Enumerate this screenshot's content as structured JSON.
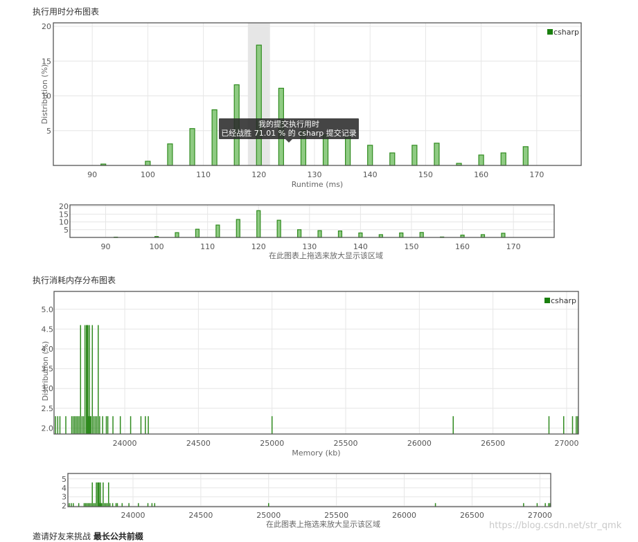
{
  "runtime_section": {
    "title": "执行用时分布图表"
  },
  "memory_section": {
    "title": "执行消耗内存分布图表"
  },
  "footer": {
    "prefix": "邀请好友来挑战 ",
    "link": "最长公共前缀"
  },
  "watermark": "https://blog.csdn.net/str_qmk",
  "colors": {
    "bar_fill": "#8fcb83",
    "bar_stroke": "#2f8a1e",
    "legend": "#1a7f0e",
    "grid": "#e6e6e6",
    "frame": "#555555",
    "highlight": "#e6e6e6"
  },
  "chart_data": [
    {
      "id": "runtime_main",
      "type": "bar",
      "xlabel": "Runtime (ms)",
      "ylabel": "Distribution (%)",
      "xlim": [
        83,
        178
      ],
      "ylim": [
        0,
        20.5
      ],
      "xticks": [
        90,
        100,
        110,
        120,
        130,
        140,
        150,
        160,
        170
      ],
      "yticks": [
        5,
        10,
        15,
        20
      ],
      "grid": true,
      "legend": {
        "position": "top-right",
        "entries": [
          "csharp"
        ]
      },
      "highlight_x": 120,
      "tooltip": {
        "line1": "我的提交执行用时",
        "line2": "已经战胜 71.01 % 的 csharp 提交记录"
      },
      "series": [
        {
          "name": "csharp",
          "x": [
            92,
            100,
            104,
            108,
            112,
            116,
            120,
            124,
            128,
            132,
            136,
            140,
            144,
            148,
            152,
            156,
            160,
            164,
            168
          ],
          "values": [
            0.2,
            0.6,
            3.1,
            5.3,
            8.0,
            11.6,
            17.3,
            11.1,
            5.0,
            4.4,
            4.2,
            2.9,
            1.8,
            2.9,
            3.2,
            0.3,
            1.5,
            1.8,
            2.7
          ]
        }
      ]
    },
    {
      "id": "runtime_navigator",
      "type": "bar",
      "xlabel": "在此图表上拖选来放大显示该区域",
      "xlim": [
        83,
        178
      ],
      "ylim": [
        0,
        21
      ],
      "xticks": [
        90,
        100,
        110,
        120,
        130,
        140,
        150,
        160,
        170
      ],
      "yticks": [
        5,
        10,
        15,
        20
      ],
      "grid": true,
      "series": [
        {
          "name": "csharp",
          "x": [
            92,
            100,
            104,
            108,
            112,
            116,
            120,
            124,
            128,
            132,
            136,
            140,
            144,
            148,
            152,
            156,
            160,
            164,
            168
          ],
          "values": [
            0.2,
            0.6,
            3.1,
            5.3,
            8.0,
            11.6,
            17.3,
            11.1,
            5.0,
            4.4,
            4.2,
            2.9,
            1.8,
            2.9,
            3.2,
            0.3,
            1.5,
            1.8,
            2.7
          ]
        }
      ]
    },
    {
      "id": "memory_main",
      "type": "bar",
      "xlabel": "Memory (kb)",
      "ylabel": "Distribution (%)",
      "xlim": [
        23520,
        27080
      ],
      "ylim": [
        1.85,
        5.45
      ],
      "xticks": [
        24000,
        24500,
        25000,
        25500,
        26000,
        26500,
        27000
      ],
      "yticks": [
        2.0,
        2.5,
        3.0,
        3.5,
        4.0,
        4.5,
        5.0
      ],
      "grid": true,
      "legend": {
        "position": "top-right",
        "entries": [
          "csharp"
        ]
      },
      "series": [
        {
          "name": "csharp",
          "x": [
            23530,
            23545,
            23560,
            23600,
            23640,
            23650,
            23660,
            23670,
            23680,
            23690,
            23700,
            23710,
            23720,
            23730,
            23740,
            23745,
            23750,
            23755,
            23760,
            23765,
            23770,
            23780,
            23790,
            23800,
            23810,
            23820,
            23830,
            23850,
            23875,
            23885,
            23920,
            23970,
            24040,
            24110,
            24140,
            24160,
            25000,
            26230,
            26880,
            26980,
            27040,
            27065,
            27075
          ],
          "values": [
            2.3,
            2.3,
            2.3,
            2.3,
            2.3,
            2.3,
            2.3,
            2.3,
            2.3,
            2.3,
            4.6,
            2.3,
            2.3,
            4.6,
            4.6,
            4.6,
            4.6,
            2.3,
            4.6,
            2.3,
            2.3,
            4.6,
            2.3,
            2.3,
            2.3,
            4.6,
            2.3,
            2.3,
            2.3,
            2.3,
            2.3,
            2.3,
            2.3,
            2.3,
            2.3,
            2.3,
            2.3,
            2.3,
            2.3,
            2.3,
            2.3,
            2.3,
            2.3
          ]
        }
      ]
    },
    {
      "id": "memory_navigator",
      "type": "bar",
      "xlabel": "在此图表上拖选来放大显示该区域",
      "xlim": [
        23520,
        27080
      ],
      "ylim": [
        1.9,
        5.6
      ],
      "xticks": [
        24000,
        24500,
        25000,
        25500,
        26000,
        26500,
        27000
      ],
      "yticks": [
        2,
        3,
        4,
        5
      ],
      "grid": true,
      "series": [
        {
          "name": "csharp",
          "x": [
            23530,
            23545,
            23560,
            23600,
            23640,
            23650,
            23660,
            23670,
            23680,
            23690,
            23700,
            23710,
            23720,
            23730,
            23740,
            23745,
            23750,
            23755,
            23760,
            23765,
            23770,
            23780,
            23790,
            23800,
            23810,
            23820,
            23830,
            23850,
            23875,
            23885,
            23920,
            23970,
            24040,
            24110,
            24140,
            24160,
            25000,
            26230,
            26880,
            26980,
            27040,
            27065,
            27075
          ],
          "values": [
            2.3,
            2.3,
            2.3,
            2.3,
            2.3,
            2.3,
            2.3,
            2.3,
            2.3,
            2.3,
            4.6,
            2.3,
            2.3,
            4.6,
            4.6,
            4.6,
            4.6,
            2.3,
            4.6,
            2.3,
            2.3,
            4.6,
            2.3,
            2.3,
            2.3,
            4.6,
            2.3,
            2.3,
            2.3,
            2.3,
            2.3,
            2.3,
            2.3,
            2.3,
            2.3,
            2.3,
            2.3,
            2.3,
            2.3,
            2.3,
            2.3,
            2.3,
            2.3
          ]
        }
      ]
    }
  ]
}
